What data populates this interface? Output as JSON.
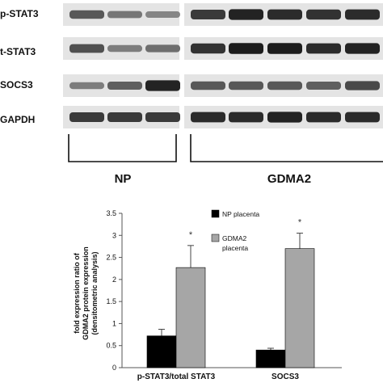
{
  "blot": {
    "rows": [
      {
        "label": "p-STAT3",
        "intensity": [
          0.55,
          0.35,
          0.25,
          0.75,
          0.9,
          0.85,
          0.8,
          0.85
        ]
      },
      {
        "label": "t-STAT3",
        "intensity": [
          0.6,
          0.3,
          0.4,
          0.8,
          0.95,
          0.95,
          0.85,
          0.9
        ]
      },
      {
        "label": "SOCS3",
        "intensity": [
          0.3,
          0.5,
          0.9,
          0.55,
          0.55,
          0.55,
          0.5,
          0.65
        ]
      },
      {
        "label": "GAPDH",
        "intensity": [
          0.75,
          0.75,
          0.75,
          0.85,
          0.85,
          0.9,
          0.85,
          0.85
        ]
      }
    ],
    "groups": [
      {
        "label": "NP"
      },
      {
        "label": "GDMA2"
      }
    ]
  },
  "chart_data": {
    "type": "bar",
    "ylabel": [
      "fold expression ratio of",
      "GDMA2 protein expression",
      "(densitometric analysis)"
    ],
    "ylim": [
      0,
      3.5
    ],
    "yticks": [
      "0",
      "0.5",
      "1",
      "1.5",
      "2",
      "2.5",
      "3",
      "3.5"
    ],
    "categories": [
      "p-STAT3/total STAT3",
      "SOCS3"
    ],
    "series": [
      {
        "name": "NP placenta",
        "color": "#000000",
        "values": [
          0.72,
          0.4
        ],
        "errors": [
          0.15,
          0.04
        ]
      },
      {
        "name": "GDMA2 placenta",
        "color": "#a6a6a6",
        "values": [
          2.27,
          2.7
        ],
        "errors": [
          0.5,
          0.35
        ]
      }
    ],
    "significance": [
      "*",
      "*"
    ],
    "legend": {
      "position": "top-right",
      "entries": [
        "NP placenta",
        "GDMA2 placenta"
      ]
    },
    "grid": false
  }
}
